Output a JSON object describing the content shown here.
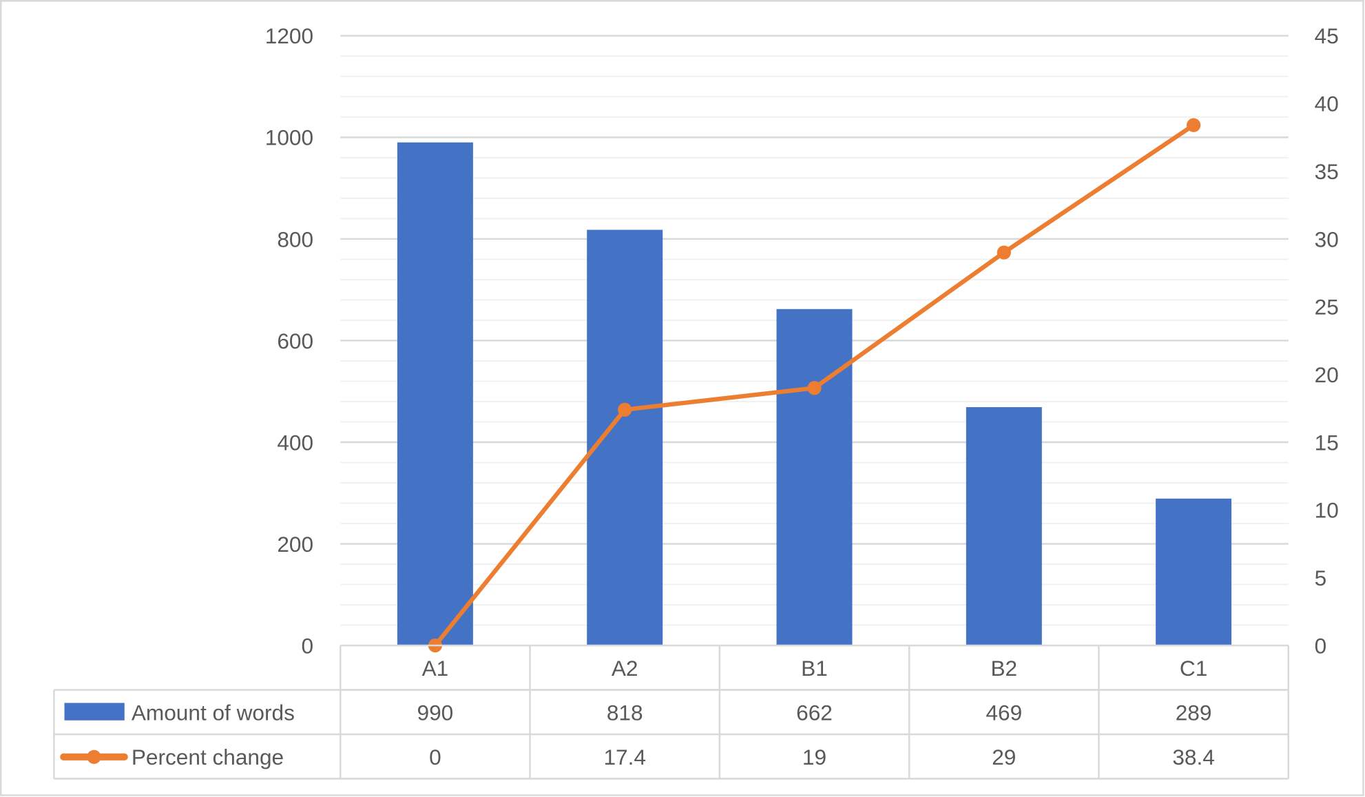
{
  "chart_data": {
    "type": "bar+line",
    "categories": [
      "A1",
      "A2",
      "B1",
      "B2",
      "C1"
    ],
    "series": [
      {
        "name": "Amount of words",
        "type": "bar",
        "axis": "left",
        "color": "#4472C4",
        "values": [
          990,
          818,
          662,
          469,
          289
        ],
        "labels": [
          "990",
          "818",
          "662",
          "469",
          "289"
        ]
      },
      {
        "name": "Percent change",
        "type": "line",
        "axis": "right",
        "color": "#ED7D31",
        "markers": true,
        "values": [
          0,
          17.4,
          19,
          29,
          38.4
        ],
        "labels": [
          "0",
          "17.4",
          "19",
          "29",
          "38.4"
        ]
      }
    ],
    "y_left": {
      "lim": [
        0,
        1200
      ],
      "ticks": [
        "0",
        "200",
        "400",
        "600",
        "800",
        "1000",
        "1200"
      ],
      "minor_step": 40
    },
    "y_right": {
      "lim": [
        0,
        45
      ],
      "ticks": [
        "0",
        "5",
        "10",
        "15",
        "20",
        "25",
        "30",
        "35",
        "40",
        "45"
      ]
    },
    "grid": true,
    "legend": "data-table-bottom"
  }
}
